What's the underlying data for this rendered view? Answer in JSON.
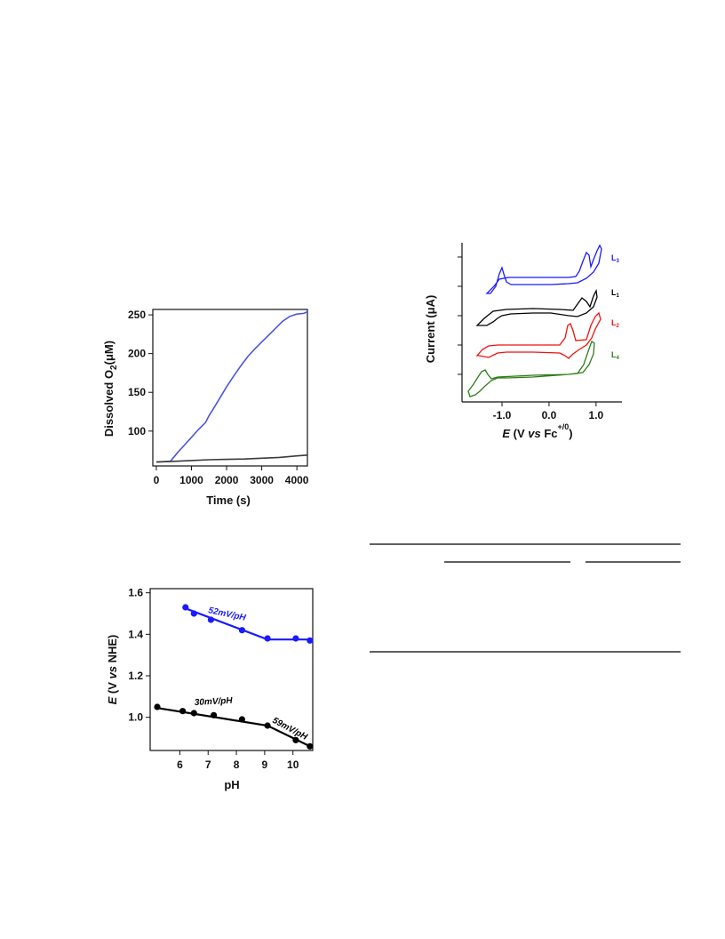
{
  "chart_data": [
    {
      "type": "line",
      "xlabel": "Time (s)",
      "ylabel_main": "Dissolved O",
      "ylabel_sub": "2",
      "ylabel_unit": "(μM)",
      "xticks": [
        "0",
        "1000",
        "2000",
        "3000",
        "4000"
      ],
      "yticks": [
        "100",
        "150",
        "200",
        "250"
      ],
      "xlim": [
        -100,
        4300
      ],
      "ylim": [
        55,
        257
      ],
      "colors": {
        "blue": "#4a55e0",
        "dark": "#3a3a3a"
      },
      "series": [
        {
          "color": "blue",
          "x": [
            0,
            400,
            600,
            800,
            1000,
            1200,
            1400,
            1500,
            1600,
            1800,
            2000,
            2200,
            2400,
            2600,
            2800,
            3000,
            3200,
            3400,
            3600,
            3800,
            4000,
            4200,
            4300
          ],
          "y": [
            60,
            61,
            72,
            82,
            92,
            102,
            111,
            120,
            127,
            142,
            157,
            171,
            184,
            196,
            206,
            215,
            224,
            233,
            242,
            248,
            251,
            252,
            254
          ]
        },
        {
          "color": "dark",
          "x": [
            0,
            500,
            1000,
            1500,
            2000,
            2500,
            3000,
            3500,
            4000,
            4300
          ],
          "y": [
            60,
            61,
            62,
            63,
            63.5,
            64,
            65,
            66,
            68,
            69
          ]
        }
      ]
    },
    {
      "type": "line",
      "subtype": "cyclic-voltammogram",
      "xlabel_italic": "E",
      "xlabel_rest": " (V ",
      "xlabel_vs": "vs",
      "xlabel_fc": " Fc",
      "xlabel_sup": "+/0",
      "xlabel_close": ")",
      "ylabel_pre": "Current (",
      "ylabel_mu": "μ",
      "ylabel_post": "A)",
      "xticks": [
        "-1.0",
        "0.0",
        "1.0"
      ],
      "xlim": [
        -1.85,
        1.55
      ],
      "series": [
        {
          "label": "L",
          "sub": "3",
          "color": "#1a1aff"
        },
        {
          "label": "L",
          "sub": "1",
          "color": "#000000"
        },
        {
          "label": "L",
          "sub": "2",
          "color": "#ee1111"
        },
        {
          "label": "L",
          "sub": "4",
          "color": "#2e7d18"
        }
      ]
    },
    {
      "type": "scatter",
      "xlabel": "pH",
      "ylabel_italic": "E",
      "ylabel_rest": " (V ",
      "ylabel_vs": "vs",
      "ylabel_close": " NHE)",
      "xticks": [
        "6",
        "7",
        "8",
        "9",
        "10"
      ],
      "yticks": [
        "1.0",
        "1.2",
        "1.4",
        "1.6"
      ],
      "xlim": [
        4.95,
        10.7
      ],
      "ylim": [
        0.84,
        1.62
      ],
      "annotations": [
        "52mV/pH",
        "30mV/pH",
        "59mV/pH"
      ],
      "series": [
        {
          "color": "#1a1aff",
          "points": [
            [
              6.2,
              1.53
            ],
            [
              6.5,
              1.5
            ],
            [
              7.1,
              1.47
            ],
            [
              8.2,
              1.42
            ],
            [
              9.1,
              1.38
            ],
            [
              10.1,
              1.38
            ],
            [
              10.6,
              1.37
            ]
          ],
          "fit": [
            [
              6.2,
              1.525
            ],
            [
              9.1,
              1.375
            ],
            [
              10.6,
              1.375
            ]
          ]
        },
        {
          "color": "#000000",
          "points": [
            [
              5.2,
              1.05
            ],
            [
              6.1,
              1.03
            ],
            [
              6.5,
              1.02
            ],
            [
              7.2,
              1.01
            ],
            [
              8.2,
              0.99
            ],
            [
              9.1,
              0.96
            ],
            [
              10.1,
              0.89
            ],
            [
              10.6,
              0.86
            ]
          ],
          "fit": [
            [
              5.2,
              1.045
            ],
            [
              9.1,
              0.96
            ],
            [
              10.6,
              0.86
            ]
          ]
        }
      ]
    }
  ]
}
